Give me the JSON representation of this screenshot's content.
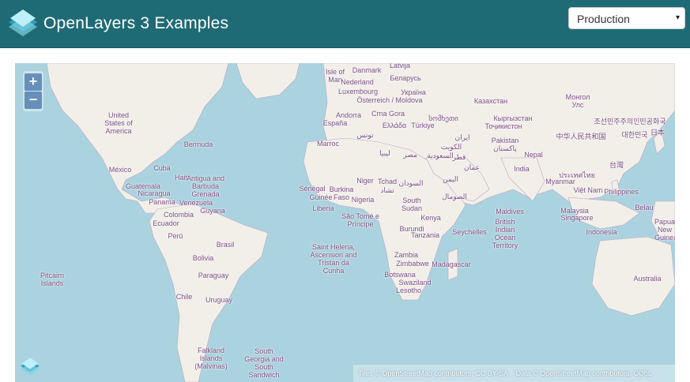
{
  "header": {
    "title": "OpenLayers 3 Examples"
  },
  "mode_select": {
    "value": "Production",
    "caret": "▾"
  },
  "map": {
    "zoom_in": "+",
    "zoom_out": "−",
    "labels": [
      "Latvija",
      "Danmark",
      "Isle of Man",
      "Nederland",
      "Беларусь",
      "Luxembourg",
      "Україна",
      "Österreich / Moldova",
      "Andorra",
      "Crna Gora",
      "España",
      "Ελλάδα",
      "Türkiye",
      "Marroc",
      "تونس",
      "ليبيا",
      "مصر",
      "სომხეთი",
      "Казахстан",
      "Монгол Улс",
      "Кыргызстан",
      "Тоҷикистон",
      "ایران",
      "الكويت",
      "قطر",
      "السعودية",
      "عمان",
      "Pakistan پاکستان",
      "Nepal",
      "India",
      "中华人民共和国",
      "조선민주주의인민공화국",
      "日本",
      "대한민국",
      "台灣",
      "Myanmar",
      "ประเทศไทย",
      "Việt Nam",
      "Philippines",
      "Malaysia",
      "Singapore",
      "Indonesia",
      "Belau",
      "Papua New Guinea",
      "United States of America",
      "Bermuda",
      "México",
      "Cuba",
      "Haiti",
      "Guatemala",
      "Nicaragua",
      "Antigua and Barbuda",
      "Grenada",
      "Panama",
      "Venezuela",
      "Guyana",
      "Colombia",
      "Ecuador",
      "Perú",
      "Brasil",
      "Bolivia",
      "Paraguay",
      "Chile",
      "Uruguay",
      "Pitcairn Islands",
      "Falkland Islands (Malvinas)",
      "South Georgia and South Sandwich",
      "Saint Helena, Ascension and Tristan da Cunha",
      "Sénégal",
      "Guinée",
      "Burkina Faso",
      "Liberia",
      "Niger",
      "Tchad",
      "Nigeria",
      "تشاد",
      "السودان",
      "South Sudan",
      "Kenya",
      "São Tomé e Príncipe",
      "Burundi",
      "Tanzania",
      "Zambia",
      "Zimbabwe",
      "Madagascar",
      "Botswana",
      "Swaziland",
      "Lesotho",
      "الصومال",
      "اليمن",
      "Seychelles",
      "Maldives",
      "British Indian Ocean Territory",
      "Australia"
    ]
  },
  "attribution": {
    "tiles_prefix": "Tiles ©",
    "tiles_link": "OpenStreetMap",
    "tiles_suffix": "contributors, CC BY-SA",
    "data_prefix": "Data ©",
    "data_link": "OpenStreetMap",
    "data_suffix": "contributors, ODbL"
  },
  "colors": {
    "navbar": "#1f6b75",
    "ocean": "#aad3df",
    "land": "#f2efe9",
    "label": "#7a4d84"
  },
  "icons": {
    "brand": "openlayers-logo-icon",
    "map_logo": "openlayers-logo-icon"
  }
}
